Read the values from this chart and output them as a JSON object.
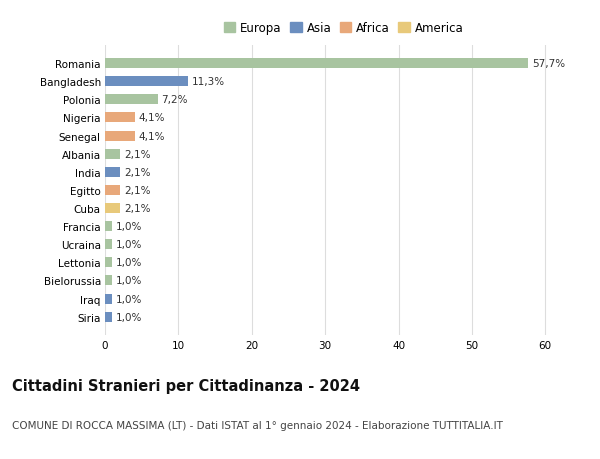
{
  "categories": [
    "Siria",
    "Iraq",
    "Bielorussia",
    "Lettonia",
    "Ucraina",
    "Francia",
    "Cuba",
    "Egitto",
    "India",
    "Albania",
    "Senegal",
    "Nigeria",
    "Polonia",
    "Bangladesh",
    "Romania"
  ],
  "values": [
    1.0,
    1.0,
    1.0,
    1.0,
    1.0,
    1.0,
    2.1,
    2.1,
    2.1,
    2.1,
    4.1,
    4.1,
    7.2,
    11.3,
    57.7
  ],
  "labels": [
    "1,0%",
    "1,0%",
    "1,0%",
    "1,0%",
    "1,0%",
    "1,0%",
    "2,1%",
    "2,1%",
    "2,1%",
    "2,1%",
    "4,1%",
    "4,1%",
    "7,2%",
    "11,3%",
    "57,7%"
  ],
  "colors": [
    "#6b8ebf",
    "#6b8ebf",
    "#a8c4a0",
    "#a8c4a0",
    "#a8c4a0",
    "#a8c4a0",
    "#e8c97a",
    "#e8a87a",
    "#6b8ebf",
    "#a8c4a0",
    "#e8a87a",
    "#e8a87a",
    "#a8c4a0",
    "#6b8ebf",
    "#a8c4a0"
  ],
  "continents": [
    "Asia",
    "Asia",
    "Europa",
    "Europa",
    "Europa",
    "Europa",
    "America",
    "Africa",
    "Asia",
    "Europa",
    "Africa",
    "Africa",
    "Europa",
    "Asia",
    "Europa"
  ],
  "legend_labels": [
    "Europa",
    "Asia",
    "Africa",
    "America"
  ],
  "legend_colors": [
    "#a8c4a0",
    "#6b8ebf",
    "#e8a87a",
    "#e8c97a"
  ],
  "title": "Cittadini Stranieri per Cittadinanza - 2024",
  "subtitle": "COMUNE DI ROCCA MASSIMA (LT) - Dati ISTAT al 1° gennaio 2024 - Elaborazione TUTTITALIA.IT",
  "xlim": [
    0,
    65
  ],
  "xticks": [
    0,
    10,
    20,
    30,
    40,
    50,
    60
  ],
  "bg_color": "#ffffff",
  "grid_color": "#dddddd",
  "bar_height": 0.55,
  "title_fontsize": 10.5,
  "subtitle_fontsize": 7.5,
  "label_fontsize": 7.5,
  "tick_fontsize": 7.5,
  "legend_fontsize": 8.5
}
